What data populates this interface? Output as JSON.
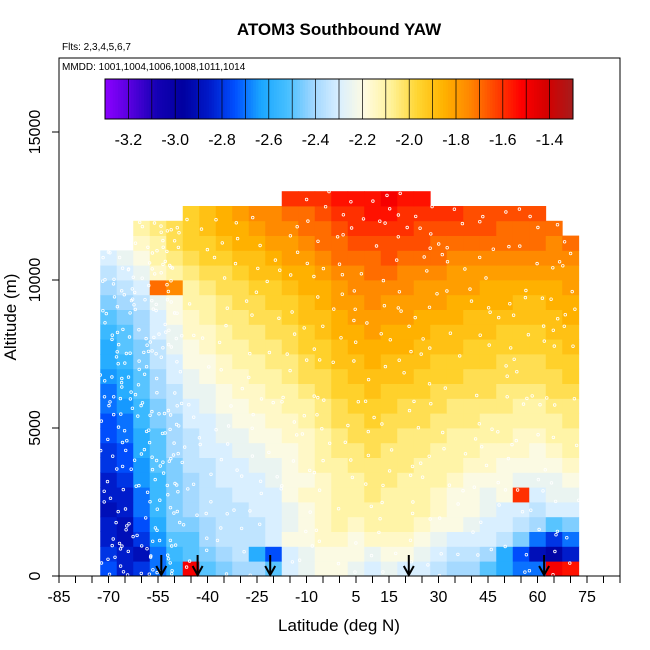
{
  "chart_data": {
    "type": "heatmap",
    "title": "ATOM3 Southbound YAW",
    "flights_note": "Flts: 2,3,4,5,6,7",
    "dates_note": "MMDD: 1001,1004,1006,1008,1011,1014",
    "xlabel": "Latitude (deg N)",
    "ylabel": "Altitude (m)",
    "xlim": [
      -85,
      85
    ],
    "ylim": [
      0,
      17500
    ],
    "x_ticks": [
      -85,
      -70,
      -55,
      -40,
      -25,
      -10,
      5,
      15,
      30,
      45,
      60,
      75
    ],
    "x_minor_ticks": [
      -80,
      -75,
      -65,
      -60,
      -50,
      -45,
      -35,
      -30,
      -20,
      -15,
      -5,
      0,
      10,
      20,
      25,
      35,
      40,
      50,
      55,
      65,
      70,
      80,
      85
    ],
    "y_ticks": [
      0,
      5000,
      10000,
      15000
    ],
    "colorbar": {
      "min": -3.3,
      "max": -1.3,
      "ticks": [
        -3.2,
        -3.0,
        -2.8,
        -2.6,
        -2.4,
        -2.2,
        -2.0,
        -1.8,
        -1.6,
        -1.4
      ],
      "colors": [
        "#8b00ff",
        "#5500dd",
        "#1400b4",
        "#0000a0",
        "#0019c8",
        "#0050ff",
        "#1aa6ff",
        "#46bfff",
        "#9fd6ff",
        "#d9efff",
        "#fffbe0",
        "#fff299",
        "#ffd633",
        "#ffb300",
        "#ff8800",
        "#ff4400",
        "#ff0000",
        "#d40000",
        "#a61c1c"
      ]
    },
    "grid": false,
    "arrow_latitudes": [
      -54,
      -43,
      -21,
      21,
      62
    ],
    "lat_columns": [
      -70,
      -65,
      -60,
      -55,
      -50,
      -45,
      -40,
      -35,
      -30,
      -25,
      -20,
      -15,
      -10,
      -5,
      0,
      5,
      10,
      15,
      20,
      25,
      30,
      35,
      40,
      45,
      50,
      55,
      60,
      65,
      70
    ],
    "alt_rows": [
      250,
      750,
      1250,
      1750,
      2250,
      2750,
      3250,
      3750,
      4250,
      4750,
      5250,
      5750,
      6250,
      6750,
      7250,
      7750,
      8250,
      8750,
      9250,
      9750,
      10250,
      10750,
      11250,
      11750,
      12250,
      12750
    ],
    "values": [
      [
        -2.75,
        -2.85,
        -2.8,
        -2.7,
        -2.6,
        -1.5,
        -2.5,
        -2.45,
        -2.4,
        -2.4,
        -2.5,
        -2.3,
        -2.25,
        -2.2,
        -2.2,
        -2.25,
        -2.3,
        -2.25,
        -2.3,
        -2.3,
        -2.35,
        -2.4,
        -2.4,
        -2.5,
        -2.6,
        -2.7,
        -2.7,
        -1.5,
        -1.55
      ],
      [
        -2.8,
        -2.85,
        -2.9,
        -2.7,
        -2.55,
        -2.5,
        -2.45,
        -2.4,
        -2.35,
        -2.6,
        -2.75,
        -2.3,
        -2.25,
        -2.2,
        -2.2,
        -2.2,
        -2.25,
        -2.2,
        -2.2,
        -2.25,
        -2.3,
        -2.35,
        -2.35,
        -2.4,
        -2.6,
        -2.75,
        -2.9,
        -2.95,
        -2.85
      ],
      [
        -2.85,
        -2.9,
        -2.8,
        -2.65,
        -2.5,
        -2.5,
        -2.4,
        -2.35,
        -2.35,
        -2.35,
        -2.3,
        -2.2,
        -2.2,
        -2.15,
        -2.15,
        -2.2,
        -2.15,
        -2.15,
        -2.15,
        -2.2,
        -2.25,
        -2.3,
        -2.3,
        -2.3,
        -2.35,
        -2.45,
        -2.7,
        -2.8,
        -2.7
      ],
      [
        -2.85,
        -2.9,
        -2.75,
        -2.6,
        -2.45,
        -2.45,
        -2.4,
        -2.35,
        -2.35,
        -2.35,
        -2.3,
        -2.25,
        -2.2,
        -2.15,
        -2.1,
        -2.15,
        -2.1,
        -2.1,
        -2.1,
        -2.15,
        -2.2,
        -2.2,
        -2.25,
        -2.3,
        -2.3,
        -2.35,
        -2.4,
        -2.5,
        -2.45
      ],
      [
        -2.9,
        -2.85,
        -2.7,
        -2.55,
        -2.45,
        -2.4,
        -2.35,
        -2.35,
        -2.35,
        -2.3,
        -2.3,
        -2.25,
        -2.2,
        -2.15,
        -2.1,
        -2.1,
        -2.1,
        -2.1,
        -2.1,
        -2.1,
        -2.15,
        -2.2,
        -2.2,
        -2.25,
        -2.3,
        -2.3,
        -2.35,
        -2.3,
        -2.3
      ],
      [
        -2.85,
        -2.85,
        -2.7,
        -2.55,
        -2.45,
        -2.4,
        -2.35,
        -2.35,
        -2.3,
        -2.3,
        -2.3,
        -2.2,
        -2.15,
        -2.15,
        -2.1,
        -2.1,
        -2.05,
        -2.1,
        -2.1,
        -2.1,
        -2.15,
        -2.2,
        -2.2,
        -2.25,
        -2.2,
        -1.6,
        -2.3,
        -2.25,
        -2.25
      ],
      [
        -2.85,
        -2.8,
        -2.65,
        -2.55,
        -2.45,
        -2.4,
        -2.35,
        -2.3,
        -2.3,
        -2.3,
        -2.25,
        -2.2,
        -2.2,
        -2.15,
        -2.1,
        -2.1,
        -2.05,
        -2.05,
        -2.1,
        -2.1,
        -2.1,
        -2.15,
        -2.2,
        -2.2,
        -2.2,
        -2.25,
        -2.25,
        -2.25,
        -2.2
      ],
      [
        -2.8,
        -2.75,
        -2.65,
        -2.5,
        -2.45,
        -2.35,
        -2.35,
        -2.3,
        -2.3,
        -2.25,
        -2.25,
        -2.2,
        -2.15,
        -2.1,
        -2.1,
        -2.05,
        -2.05,
        -2.05,
        -2.05,
        -2.1,
        -2.1,
        -2.1,
        -2.15,
        -2.15,
        -2.2,
        -2.2,
        -2.2,
        -2.2,
        -2.15
      ],
      [
        -2.8,
        -2.75,
        -2.6,
        -2.5,
        -2.4,
        -2.35,
        -2.3,
        -2.3,
        -2.25,
        -2.25,
        -2.2,
        -2.2,
        -2.15,
        -2.1,
        -2.05,
        -2.05,
        -2.0,
        -2.05,
        -2.05,
        -2.05,
        -2.1,
        -2.1,
        -2.1,
        -2.15,
        -2.15,
        -2.15,
        -2.2,
        -2.15,
        -2.1
      ],
      [
        -2.75,
        -2.7,
        -2.6,
        -2.5,
        -2.4,
        -2.35,
        -2.3,
        -2.25,
        -2.25,
        -2.2,
        -2.2,
        -2.15,
        -2.15,
        -2.1,
        -2.05,
        -2.0,
        -2.0,
        -2.0,
        -2.05,
        -2.05,
        -2.05,
        -2.1,
        -2.1,
        -2.1,
        -2.1,
        -2.15,
        -2.15,
        -2.1,
        -2.1
      ],
      [
        -2.75,
        -2.7,
        -2.55,
        -2.45,
        -2.4,
        -2.3,
        -2.3,
        -2.25,
        -2.2,
        -2.2,
        -2.15,
        -2.15,
        -2.1,
        -2.05,
        -2.0,
        -2.0,
        -1.95,
        -2.0,
        -2.0,
        -2.0,
        -2.05,
        -2.05,
        -2.05,
        -2.1,
        -2.1,
        -2.1,
        -2.1,
        -2.1,
        -2.05
      ],
      [
        -2.7,
        -2.65,
        -2.55,
        -2.45,
        -2.35,
        -2.3,
        -2.25,
        -2.2,
        -2.2,
        -2.15,
        -2.15,
        -2.1,
        -2.1,
        -2.05,
        -2.0,
        -1.95,
        -1.95,
        -1.95,
        -2.0,
        -2.0,
        -2.0,
        -2.05,
        -2.05,
        -2.05,
        -2.05,
        -2.1,
        -2.1,
        -2.05,
        -2.05
      ],
      [
        -2.7,
        -2.6,
        -2.5,
        -2.4,
        -2.35,
        -2.25,
        -2.25,
        -2.2,
        -2.15,
        -2.15,
        -2.1,
        -2.1,
        -2.05,
        -2.0,
        -1.95,
        -1.95,
        -1.9,
        -1.95,
        -1.95,
        -1.95,
        -2.0,
        -2.0,
        -2.0,
        -2.0,
        -2.05,
        -2.05,
        -2.05,
        -2.0,
        -2.0
      ],
      [
        -2.65,
        -2.6,
        -2.5,
        -2.4,
        -2.3,
        -2.25,
        -2.2,
        -2.15,
        -2.15,
        -2.1,
        -2.1,
        -2.05,
        -2.0,
        -2.0,
        -1.95,
        -1.9,
        -1.9,
        -1.9,
        -1.9,
        -1.95,
        -1.95,
        -1.95,
        -2.0,
        -2.0,
        -2.0,
        -2.0,
        -2.0,
        -2.0,
        -1.95
      ],
      [
        -2.6,
        -2.55,
        -2.45,
        -2.35,
        -2.3,
        -2.2,
        -2.2,
        -2.15,
        -2.1,
        -2.1,
        -2.05,
        -2.05,
        -2.0,
        -1.95,
        -1.9,
        -1.9,
        -1.85,
        -1.9,
        -1.9,
        -1.9,
        -1.95,
        -1.95,
        -1.95,
        -1.95,
        -2.0,
        -2.0,
        -2.0,
        -1.95,
        -1.95
      ],
      [
        -2.6,
        -2.5,
        -2.45,
        -2.35,
        -2.25,
        -2.2,
        -2.15,
        -2.1,
        -2.1,
        -2.05,
        -2.05,
        -2.0,
        -1.95,
        -1.95,
        -1.9,
        -1.85,
        -1.85,
        -1.85,
        -1.85,
        -1.9,
        -1.9,
        -1.9,
        -1.95,
        -1.95,
        -1.95,
        -1.95,
        -1.95,
        -1.95,
        -1.9
      ],
      [
        -2.55,
        -2.5,
        -2.4,
        -2.3,
        -2.25,
        -2.15,
        -2.15,
        -2.1,
        -2.05,
        -2.05,
        -2.0,
        -2.0,
        -1.95,
        -1.9,
        -1.85,
        -1.85,
        -1.8,
        -1.85,
        -1.85,
        -1.85,
        -1.9,
        -1.9,
        -1.9,
        -1.9,
        -1.95,
        -1.95,
        -1.95,
        -1.9,
        -1.9
      ],
      [
        -2.5,
        -2.45,
        -2.4,
        -2.3,
        -2.2,
        -2.15,
        -2.1,
        -2.05,
        -2.05,
        -2.0,
        -2.0,
        -1.95,
        -1.9,
        -1.9,
        -1.85,
        -1.8,
        -1.8,
        -1.8,
        -1.8,
        -1.85,
        -1.85,
        -1.85,
        -1.9,
        -1.9,
        -1.9,
        -1.9,
        -1.9,
        -1.9,
        -1.85
      ],
      [
        -2.45,
        -2.4,
        -2.35,
        -2.25,
        -2.2,
        -2.1,
        -2.1,
        -2.05,
        -2.0,
        -2.0,
        -1.95,
        -1.95,
        -1.9,
        -1.85,
        -1.8,
        -1.8,
        -1.75,
        -1.8,
        -1.8,
        -1.8,
        -1.8,
        -1.85,
        -1.85,
        -1.85,
        -1.85,
        -1.9,
        -1.9,
        -1.85,
        -1.85
      ],
      [
        -2.4,
        -2.35,
        -2.3,
        -1.7,
        -1.75,
        -2.1,
        -2.05,
        -2.0,
        -2.0,
        -1.95,
        -1.95,
        -1.9,
        -1.85,
        -1.85,
        -1.8,
        -1.75,
        -1.75,
        -1.75,
        -1.75,
        -1.8,
        -1.8,
        -1.8,
        -1.8,
        -1.85,
        -1.85,
        -1.85,
        -1.85,
        -1.85,
        -1.8
      ],
      [
        -2.35,
        -2.3,
        -2.25,
        -2.15,
        -2.1,
        -2.05,
        -2.0,
        -2.0,
        -1.95,
        -1.9,
        -1.9,
        -1.85,
        -1.85,
        -1.8,
        -1.75,
        -1.75,
        -1.7,
        -1.7,
        -1.75,
        -1.75,
        -1.75,
        -1.8,
        -1.8,
        -1.8,
        -1.8,
        -1.8,
        -1.8,
        -1.8,
        -1.8
      ],
      [
        -2.3,
        -2.25,
        -2.2,
        -2.1,
        -2.05,
        -2.0,
        -1.95,
        -1.95,
        -1.9,
        -1.9,
        -1.85,
        -1.8,
        -1.8,
        -1.75,
        -1.7,
        -1.7,
        -1.7,
        -1.65,
        -1.7,
        -1.7,
        -1.7,
        -1.75,
        -1.75,
        -1.75,
        -1.75,
        -1.75,
        -1.75,
        -1.75,
        -1.75
      ],
      [
        null,
        null,
        -2.15,
        -2.1,
        -2.0,
        -1.95,
        -1.95,
        -1.9,
        -1.85,
        -1.85,
        -1.8,
        -1.8,
        -1.75,
        -1.7,
        -1.7,
        -1.65,
        -1.65,
        -1.65,
        -1.65,
        -1.65,
        -1.7,
        -1.7,
        -1.7,
        -1.7,
        -1.7,
        -1.7,
        -1.7,
        -1.75,
        -1.7
      ],
      [
        null,
        null,
        -2.1,
        -2.05,
        -2.0,
        -1.95,
        -1.9,
        -1.85,
        -1.85,
        -1.8,
        -1.75,
        -1.75,
        -1.7,
        -1.7,
        -1.65,
        -1.6,
        -1.6,
        -1.6,
        -1.6,
        -1.65,
        -1.65,
        -1.65,
        -1.65,
        -1.65,
        -1.7,
        -1.7,
        -1.7,
        -1.7,
        null
      ],
      [
        null,
        null,
        null,
        null,
        null,
        -1.95,
        -1.9,
        -1.85,
        -1.8,
        -1.75,
        -1.75,
        -1.7,
        -1.7,
        -1.65,
        -1.6,
        -1.6,
        -1.55,
        -1.55,
        -1.6,
        -1.6,
        -1.6,
        -1.6,
        -1.65,
        -1.65,
        -1.65,
        -1.65,
        -1.65,
        null,
        null
      ],
      [
        null,
        null,
        null,
        null,
        null,
        null,
        null,
        null,
        null,
        null,
        null,
        -1.6,
        -1.6,
        -1.6,
        -1.55,
        -1.55,
        -1.55,
        -1.5,
        -1.55,
        -1.55,
        null,
        null,
        null,
        null,
        null,
        null,
        null,
        null,
        null
      ]
    ]
  }
}
